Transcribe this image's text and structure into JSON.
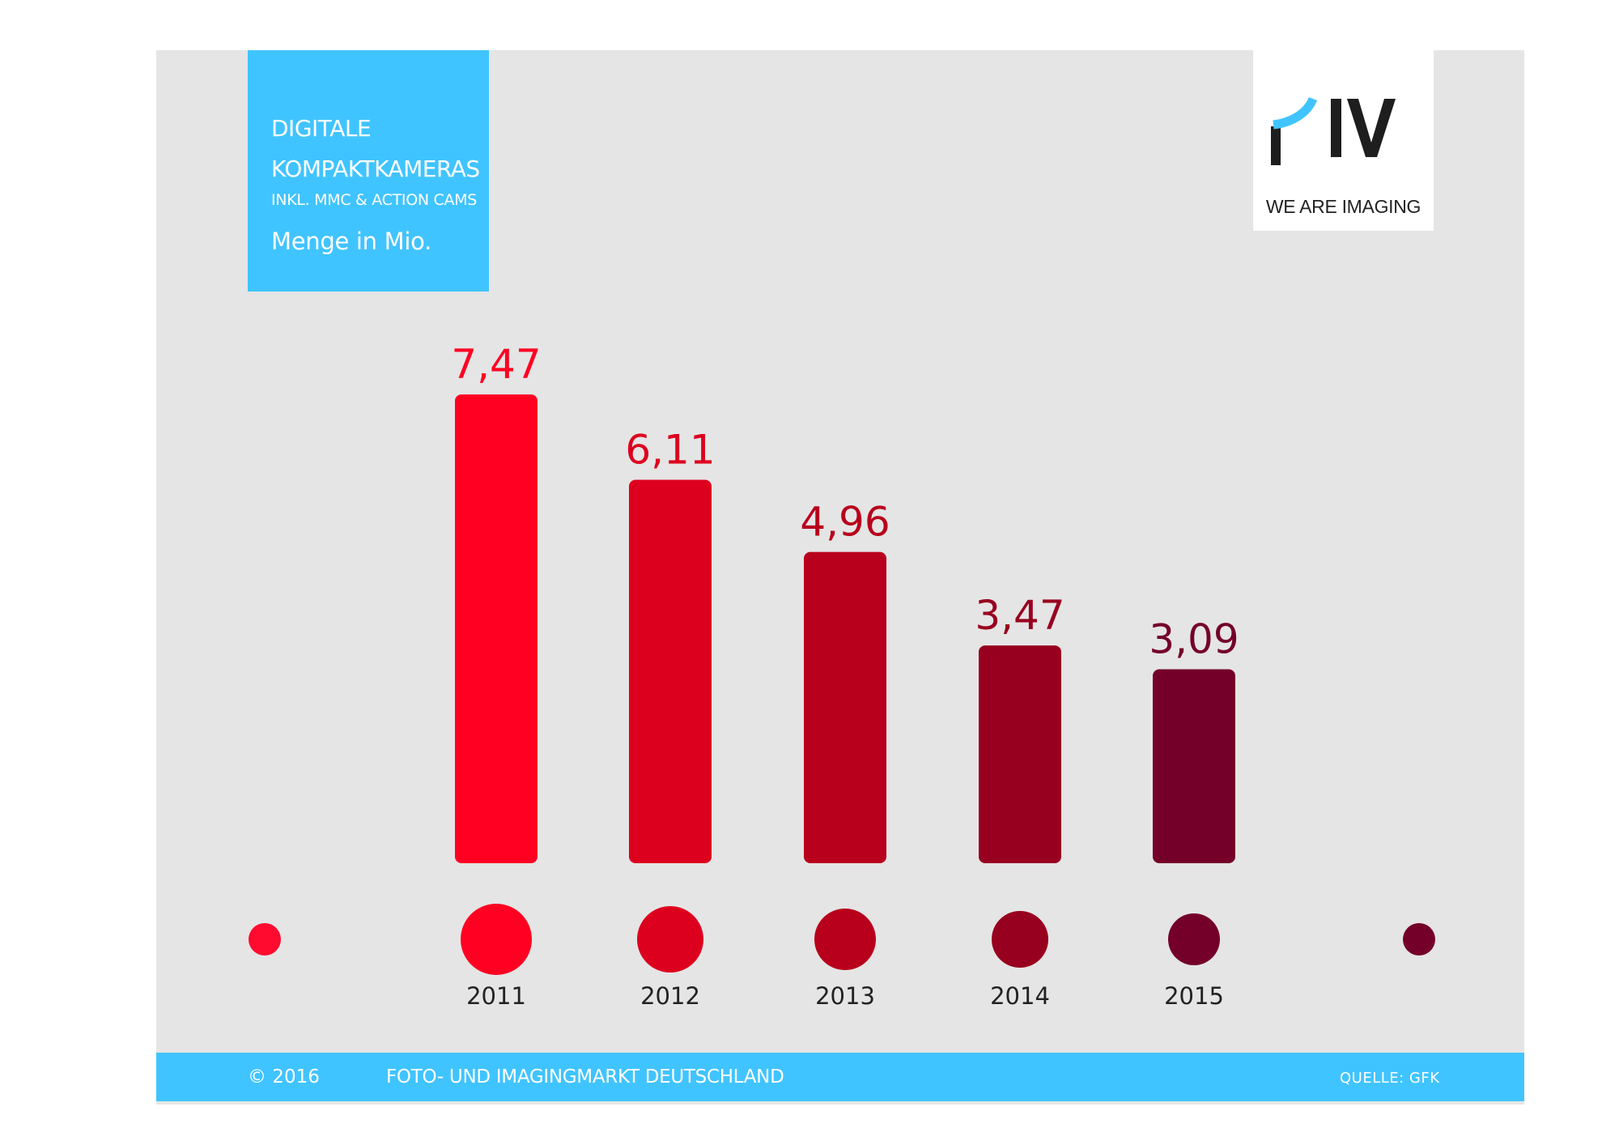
{
  "header": {
    "title_line1": "DIGITALE",
    "title_line2": "KOMPAKTKAMERAS",
    "subtitle": "INKL. MMC & ACTION CAMS",
    "unit": "Menge in Mio."
  },
  "logo": {
    "tagline": "WE ARE IMAGING",
    "icon": "piv-logo",
    "text_in_logo": "IV"
  },
  "footer": {
    "copyright": "© 2016",
    "title": "FOTO- UND IMAGINGMARKT DEUTSCHLAND",
    "source": "QUELLE: GFK"
  },
  "colors": {
    "accent": "#40c4ff",
    "panel": "#e5e5e5",
    "bar_colors": [
      "#ff0022",
      "#dd001e",
      "#b8001c",
      "#98001f",
      "#74002a"
    ],
    "timeline_start": "#ff0b30",
    "timeline_end": "#74002a"
  },
  "chart_data": {
    "type": "bar",
    "title": "DIGITALE KOMPAKTKAMERAS INKL. MMC & ACTION CAMS",
    "ylabel": "Menge in Mio.",
    "xlabel": "",
    "categories": [
      "2011",
      "2012",
      "2013",
      "2014",
      "2015"
    ],
    "values": [
      7.47,
      6.11,
      4.96,
      3.47,
      3.09
    ],
    "value_labels": [
      "7,47",
      "6,11",
      "4,96",
      "3,47",
      "3,09"
    ],
    "ylim": [
      0,
      8
    ],
    "grid": false,
    "legend": "none"
  }
}
